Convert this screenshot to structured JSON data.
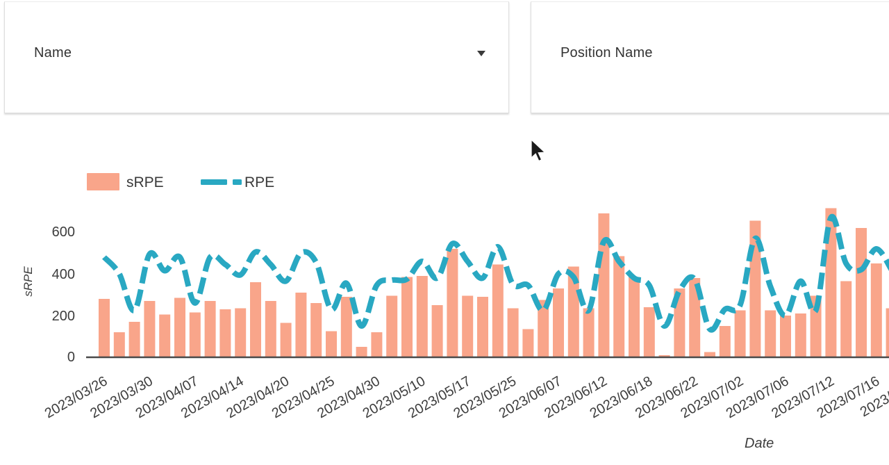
{
  "filters": {
    "name_card": {
      "label": "Name"
    },
    "position_card": {
      "label": "Position Name"
    }
  },
  "chart": {
    "legend": {
      "srpe_label": "sRPE",
      "rpe_label": "RPE"
    },
    "y_axis": {
      "title": "sRPE",
      "ticks": [
        "600",
        "400",
        "200",
        "0"
      ]
    },
    "x_axis": {
      "title": "Date"
    },
    "colors": {
      "bar": "#F9A58A",
      "line": "#29A8C2",
      "axis": "#4a4a4a",
      "text": "#3d3d3d"
    }
  },
  "chart_data": {
    "type": "bar+line",
    "title": "",
    "xlabel": "Date",
    "ylabel": "sRPE",
    "y_ticks": [
      0,
      200,
      400,
      600
    ],
    "ylim": [
      0,
      730
    ],
    "grid": false,
    "legend_position": "top-left",
    "n_points": 53,
    "tick_every": 3,
    "x_tick_labels": [
      "2023/03/26",
      "2023/03/30",
      "2023/04/07",
      "2023/04/14",
      "2023/04/20",
      "2023/04/25",
      "2023/04/30",
      "2023/05/10",
      "2023/05/17",
      "2023/05/25",
      "2023/06/07",
      "2023/06/12",
      "2023/06/18",
      "2023/06/22",
      "2023/07/02",
      "2023/07/06",
      "2023/07/12",
      "2023/07/16"
    ],
    "partial_last_tick": "2023/",
    "series": [
      {
        "name": "sRPE",
        "type": "bar",
        "values": [
          280,
          120,
          170,
          270,
          205,
          285,
          215,
          270,
          230,
          235,
          360,
          270,
          165,
          310,
          260,
          125,
          290,
          50,
          120,
          295,
          385,
          390,
          250,
          520,
          295,
          290,
          445,
          235,
          135,
          275,
          330,
          435,
          235,
          690,
          485,
          385,
          240,
          10,
          330,
          380,
          25,
          150,
          225,
          655,
          225,
          200,
          210,
          295,
          715,
          365,
          620,
          450,
          235
        ]
      },
      {
        "name": "RPE",
        "type": "line",
        "axis_note": "values estimated on the visible sRPE axis scale",
        "values": [
          480,
          400,
          225,
          495,
          415,
          480,
          260,
          480,
          445,
          395,
          505,
          445,
          365,
          500,
          455,
          230,
          355,
          150,
          345,
          370,
          375,
          460,
          380,
          545,
          460,
          380,
          530,
          350,
          345,
          225,
          400,
          385,
          225,
          555,
          460,
          380,
          345,
          150,
          320,
          375,
          135,
          230,
          250,
          570,
          340,
          200,
          365,
          225,
          670,
          450,
          420,
          520,
          420
        ]
      }
    ]
  }
}
